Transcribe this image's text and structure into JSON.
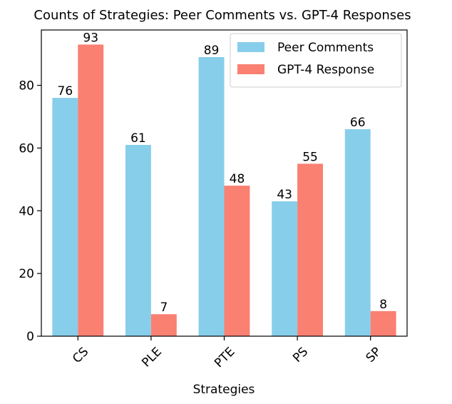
{
  "chart_data": {
    "type": "bar",
    "title": "Counts of Strategies: Peer Comments vs. GPT-4 Responses",
    "xlabel": "Strategies",
    "ylabel": "",
    "categories": [
      "CS",
      "PLE",
      "PTE",
      "PS",
      "SP"
    ],
    "series": [
      {
        "name": "Peer Comments",
        "values": [
          76,
          61,
          89,
          43,
          66
        ],
        "color": "#87CEEB"
      },
      {
        "name": "GPT-4 Response",
        "values": [
          93,
          7,
          48,
          55,
          8
        ],
        "color": "#FA8072"
      }
    ],
    "ylim": [
      0,
      97.65
    ],
    "yticks": [
      0,
      20,
      40,
      60,
      80
    ],
    "legend": "top-right",
    "grid": false,
    "xtick_rotation": 45
  }
}
